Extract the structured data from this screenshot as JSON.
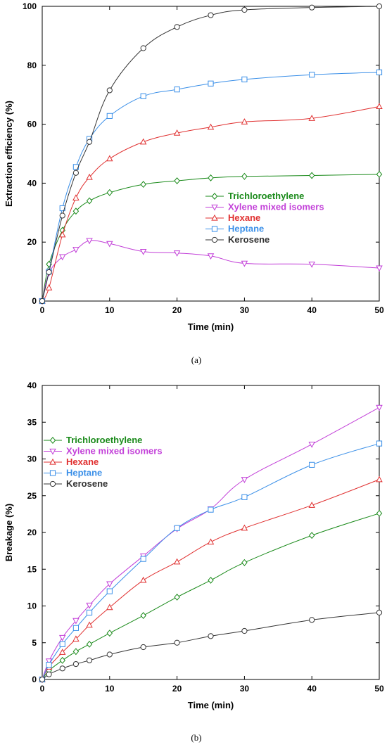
{
  "chart_data": [
    {
      "type": "line",
      "panel_label": "(a)",
      "xlabel": "Time (min)",
      "ylabel": "Extraction efficiency (%)",
      "xlim": [
        0,
        50
      ],
      "ylim": [
        0,
        100
      ],
      "xticks": [
        0,
        10,
        20,
        30,
        40,
        50
      ],
      "yticks": [
        0,
        20,
        40,
        60,
        80,
        100
      ],
      "grid": false,
      "legend_position": "center-right",
      "series": [
        {
          "name": "Trichloroethylene",
          "color": "#1a8a1a",
          "marker": "diamond",
          "x": [
            0,
            1,
            3,
            5,
            7,
            10,
            15,
            20,
            25,
            30,
            40,
            50
          ],
          "y": [
            0,
            12.5,
            24,
            30.5,
            34,
            36.8,
            39.6,
            40.8,
            41.8,
            42.3,
            42.6,
            43
          ]
        },
        {
          "name": "Xylene mixed isomers",
          "color": "#c23fd8",
          "marker": "triangle-down",
          "x": [
            0,
            1,
            3,
            5,
            7,
            10,
            15,
            20,
            25,
            30,
            40,
            50
          ],
          "y": [
            0,
            9.5,
            15,
            17.5,
            20.5,
            19.5,
            16.8,
            16.3,
            15.3,
            12.8,
            12.5,
            11.2
          ]
        },
        {
          "name": "Hexane",
          "color": "#e03030",
          "marker": "triangle-up",
          "x": [
            0,
            1,
            3,
            5,
            7,
            10,
            15,
            20,
            25,
            30,
            40,
            50
          ],
          "y": [
            0,
            4.5,
            22.5,
            35,
            42,
            48.3,
            54,
            57,
            59,
            60.8,
            62,
            66
          ]
        },
        {
          "name": "Heptane",
          "color": "#3a8fe8",
          "marker": "square",
          "x": [
            0,
            1,
            3,
            5,
            7,
            10,
            15,
            20,
            25,
            30,
            40,
            50
          ],
          "y": [
            0,
            10,
            31.5,
            45.5,
            55,
            62.8,
            69.5,
            71.8,
            73.8,
            75.2,
            76.8,
            77.6
          ]
        },
        {
          "name": "Kerosene",
          "color": "#333333",
          "marker": "circle",
          "x": [
            0,
            1,
            3,
            5,
            7,
            10,
            15,
            20,
            25,
            30,
            40,
            50
          ],
          "y": [
            0,
            9.8,
            29,
            43.5,
            54,
            71.5,
            85.8,
            93,
            97,
            98.8,
            99.6,
            100
          ]
        }
      ]
    },
    {
      "type": "line",
      "panel_label": "(b)",
      "xlabel": "Time (min)",
      "ylabel": "Breakage (%)",
      "xlim": [
        0,
        50
      ],
      "ylim": [
        0,
        40
      ],
      "xticks": [
        0,
        10,
        20,
        30,
        40,
        50
      ],
      "yticks": [
        0,
        5,
        10,
        15,
        20,
        25,
        30,
        35,
        40
      ],
      "grid": false,
      "legend_position": "top-left",
      "series": [
        {
          "name": "Trichloroethylene",
          "color": "#1a8a1a",
          "marker": "diamond",
          "x": [
            0,
            1,
            3,
            5,
            7,
            10,
            15,
            20,
            25,
            30,
            40,
            50
          ],
          "y": [
            0,
            1.2,
            2.6,
            3.8,
            4.8,
            6.3,
            8.7,
            11.2,
            13.5,
            15.9,
            19.6,
            22.6
          ]
        },
        {
          "name": "Xylene mixed isomers",
          "color": "#c23fd8",
          "marker": "triangle-down",
          "x": [
            0,
            1,
            3,
            5,
            7,
            10,
            15,
            20,
            25,
            30,
            40,
            50
          ],
          "y": [
            0,
            2.5,
            5.7,
            8,
            10.1,
            13,
            16.8,
            20.5,
            23.2,
            27.2,
            32,
            37
          ]
        },
        {
          "name": "Hexane",
          "color": "#e03030",
          "marker": "triangle-up",
          "x": [
            0,
            1,
            3,
            5,
            7,
            10,
            15,
            20,
            25,
            30,
            40,
            50
          ],
          "y": [
            0,
            1.7,
            3.7,
            5.5,
            7.4,
            9.8,
            13.5,
            16,
            18.7,
            20.6,
            23.7,
            27.2
          ]
        },
        {
          "name": "Heptane",
          "color": "#3a8fe8",
          "marker": "square",
          "x": [
            0,
            1,
            3,
            5,
            7,
            10,
            15,
            20,
            25,
            30,
            40,
            50
          ],
          "y": [
            0,
            2,
            4.8,
            7,
            9.1,
            12,
            16.4,
            20.6,
            23.1,
            24.8,
            29.2,
            32.1
          ]
        },
        {
          "name": "Kerosene",
          "color": "#333333",
          "marker": "circle",
          "x": [
            0,
            1,
            3,
            5,
            7,
            10,
            15,
            20,
            25,
            30,
            40,
            50
          ],
          "y": [
            0,
            0.7,
            1.5,
            2.1,
            2.6,
            3.4,
            4.4,
            5,
            5.9,
            6.6,
            8.1,
            9.1
          ]
        }
      ]
    }
  ]
}
